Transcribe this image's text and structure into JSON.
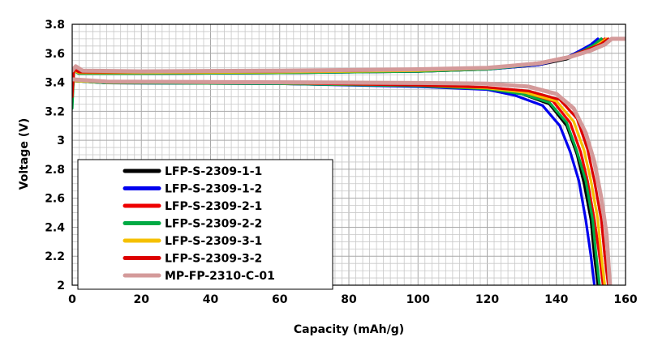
{
  "chart_data": {
    "type": "line",
    "xlabel": "Capacity (mAh/g)",
    "ylabel": "Voltage (V)",
    "xlim": [
      0,
      160
    ],
    "ylim": [
      2,
      3.8
    ],
    "x_ticks": [
      "0",
      "20",
      "40",
      "60",
      "80",
      "100",
      "120",
      "140",
      "160"
    ],
    "y_ticks": [
      "2",
      "2.2",
      "2.4",
      "2.6",
      "2.8",
      "3",
      "3.2",
      "3.4",
      "3.6",
      "3.8"
    ],
    "grid": true,
    "legend_position": "bottom-left",
    "series": [
      {
        "name": "LFP-S-2309-1-1",
        "color": "#000000",
        "charge": [
          [
            0,
            3.3
          ],
          [
            0.5,
            3.48
          ],
          [
            2,
            3.46
          ],
          [
            20,
            3.46
          ],
          [
            60,
            3.465
          ],
          [
            100,
            3.475
          ],
          [
            120,
            3.49
          ],
          [
            135,
            3.52
          ],
          [
            143,
            3.56
          ],
          [
            148,
            3.61
          ],
          [
            151,
            3.66
          ],
          [
            153,
            3.7
          ]
        ],
        "discharge": [
          [
            0.3,
            3.41
          ],
          [
            10,
            3.395
          ],
          [
            60,
            3.39
          ],
          [
            100,
            3.375
          ],
          [
            120,
            3.355
          ],
          [
            130,
            3.32
          ],
          [
            138,
            3.25
          ],
          [
            143,
            3.1
          ],
          [
            146,
            2.9
          ],
          [
            148,
            2.7
          ],
          [
            150,
            2.45
          ],
          [
            151,
            2.2
          ],
          [
            152,
            2.0
          ]
        ]
      },
      {
        "name": "LFP-S-2309-1-2",
        "color": "#0000ee",
        "charge": [
          [
            0,
            3.3
          ],
          [
            0.5,
            3.48
          ],
          [
            2,
            3.46
          ],
          [
            20,
            3.46
          ],
          [
            60,
            3.465
          ],
          [
            100,
            3.475
          ],
          [
            120,
            3.49
          ],
          [
            135,
            3.52
          ],
          [
            143,
            3.57
          ],
          [
            147,
            3.62
          ],
          [
            150,
            3.66
          ],
          [
            152,
            3.7
          ]
        ],
        "discharge": [
          [
            0.3,
            3.41
          ],
          [
            10,
            3.395
          ],
          [
            60,
            3.39
          ],
          [
            100,
            3.37
          ],
          [
            120,
            3.35
          ],
          [
            128,
            3.31
          ],
          [
            136,
            3.24
          ],
          [
            141,
            3.1
          ],
          [
            144,
            2.92
          ],
          [
            146.5,
            2.72
          ],
          [
            148.5,
            2.45
          ],
          [
            150,
            2.2
          ],
          [
            151,
            2.0
          ]
        ]
      },
      {
        "name": "LFP-S-2309-2-1",
        "color": "#ee0000",
        "charge": [
          [
            0,
            3.3
          ],
          [
            0.5,
            3.49
          ],
          [
            2,
            3.47
          ],
          [
            20,
            3.465
          ],
          [
            60,
            3.47
          ],
          [
            100,
            3.48
          ],
          [
            120,
            3.495
          ],
          [
            135,
            3.53
          ],
          [
            143,
            3.57
          ],
          [
            148,
            3.62
          ],
          [
            152,
            3.66
          ],
          [
            154,
            3.7
          ]
        ],
        "discharge": [
          [
            0.3,
            3.42
          ],
          [
            10,
            3.4
          ],
          [
            60,
            3.395
          ],
          [
            100,
            3.38
          ],
          [
            120,
            3.36
          ],
          [
            130,
            3.33
          ],
          [
            139,
            3.27
          ],
          [
            144,
            3.12
          ],
          [
            147,
            2.92
          ],
          [
            149,
            2.72
          ],
          [
            151,
            2.45
          ],
          [
            152.5,
            2.2
          ],
          [
            153.5,
            2.0
          ]
        ]
      },
      {
        "name": "LFP-S-2309-2-2",
        "color": "#00aa44",
        "charge": [
          [
            0,
            3.22
          ],
          [
            0.5,
            3.48
          ],
          [
            2,
            3.46
          ],
          [
            20,
            3.46
          ],
          [
            60,
            3.465
          ],
          [
            100,
            3.475
          ],
          [
            120,
            3.49
          ],
          [
            135,
            3.525
          ],
          [
            143,
            3.57
          ],
          [
            148,
            3.62
          ],
          [
            151,
            3.66
          ],
          [
            153,
            3.7
          ]
        ],
        "discharge": [
          [
            0.3,
            3.41
          ],
          [
            10,
            3.395
          ],
          [
            60,
            3.39
          ],
          [
            100,
            3.375
          ],
          [
            120,
            3.355
          ],
          [
            130,
            3.32
          ],
          [
            138,
            3.26
          ],
          [
            143,
            3.12
          ],
          [
            146,
            2.92
          ],
          [
            148.5,
            2.72
          ],
          [
            150.5,
            2.45
          ],
          [
            151.5,
            2.2
          ],
          [
            152.5,
            2.0
          ]
        ]
      },
      {
        "name": "LFP-S-2309-3-1",
        "color": "#f5c000",
        "charge": [
          [
            0,
            3.3
          ],
          [
            0.5,
            3.48
          ],
          [
            2,
            3.465
          ],
          [
            20,
            3.465
          ],
          [
            60,
            3.47
          ],
          [
            100,
            3.48
          ],
          [
            120,
            3.495
          ],
          [
            135,
            3.53
          ],
          [
            144,
            3.575
          ],
          [
            149,
            3.62
          ],
          [
            152,
            3.66
          ],
          [
            154.5,
            3.7
          ]
        ],
        "discharge": [
          [
            0.3,
            3.41
          ],
          [
            10,
            3.4
          ],
          [
            60,
            3.395
          ],
          [
            100,
            3.38
          ],
          [
            120,
            3.36
          ],
          [
            131,
            3.33
          ],
          [
            140,
            3.27
          ],
          [
            145,
            3.13
          ],
          [
            148,
            2.93
          ],
          [
            150,
            2.72
          ],
          [
            152,
            2.45
          ],
          [
            153,
            2.2
          ],
          [
            154,
            2.0
          ]
        ]
      },
      {
        "name": "LFP-S-2309-3-2",
        "color": "#dd0000",
        "charge": [
          [
            0,
            3.3
          ],
          [
            0.5,
            3.49
          ],
          [
            2,
            3.47
          ],
          [
            20,
            3.47
          ],
          [
            60,
            3.475
          ],
          [
            100,
            3.485
          ],
          [
            120,
            3.5
          ],
          [
            135,
            3.535
          ],
          [
            144,
            3.58
          ],
          [
            149,
            3.625
          ],
          [
            153,
            3.665
          ],
          [
            155,
            3.7
          ]
        ],
        "discharge": [
          [
            0.3,
            3.42
          ],
          [
            10,
            3.4
          ],
          [
            60,
            3.395
          ],
          [
            100,
            3.38
          ],
          [
            120,
            3.365
          ],
          [
            132,
            3.34
          ],
          [
            141,
            3.28
          ],
          [
            146,
            3.15
          ],
          [
            149,
            2.94
          ],
          [
            151,
            2.72
          ],
          [
            153,
            2.45
          ],
          [
            154,
            2.2
          ],
          [
            155,
            2.0
          ]
        ]
      },
      {
        "name": "MP-FP-2310-C-01",
        "color": "#d49a9a",
        "charge": [
          [
            0,
            3.48
          ],
          [
            1,
            3.51
          ],
          [
            3,
            3.48
          ],
          [
            20,
            3.475
          ],
          [
            60,
            3.48
          ],
          [
            100,
            3.49
          ],
          [
            120,
            3.5
          ],
          [
            135,
            3.53
          ],
          [
            144,
            3.575
          ],
          [
            150,
            3.62
          ],
          [
            154,
            3.66
          ],
          [
            156,
            3.7
          ],
          [
            160,
            3.7
          ]
        ],
        "discharge": [
          [
            0.3,
            3.42
          ],
          [
            10,
            3.405
          ],
          [
            60,
            3.4
          ],
          [
            100,
            3.395
          ],
          [
            120,
            3.39
          ],
          [
            132,
            3.37
          ],
          [
            140,
            3.32
          ],
          [
            145,
            3.22
          ],
          [
            148.5,
            3.05
          ],
          [
            151,
            2.85
          ],
          [
            153,
            2.6
          ],
          [
            154.5,
            2.35
          ],
          [
            155.5,
            2.0
          ]
        ]
      }
    ]
  }
}
